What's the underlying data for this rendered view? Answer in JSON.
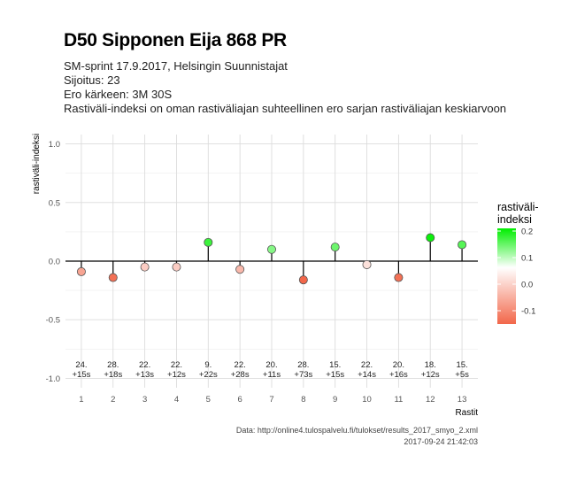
{
  "header": {
    "title": "D50 Sipponen Eija 868 PR",
    "subtitle_lines": [
      "SM-sprint 17.9.2017, Helsingin Suunnistajat",
      "Sijoitus: 23",
      "Ero kärkeen: 3M 30S",
      "Rastiväli-indeksi on oman rastiväliajan suhteellinen ero sarjan rastiväliajan keskiarvoon"
    ]
  },
  "chart_data": {
    "type": "scatter",
    "style": "lollipop",
    "xlabel": "Rastit",
    "ylabel": "rastiväli-indeksi",
    "ylim": [
      -1.0,
      1.0
    ],
    "yticks": [
      -1.0,
      -0.5,
      0.0,
      0.5,
      1.0
    ],
    "ytick_labels": [
      "-1.0",
      "-0.5",
      "0.0",
      "0.5",
      "1.0"
    ],
    "categories": [
      "1",
      "2",
      "3",
      "4",
      "5",
      "6",
      "7",
      "8",
      "9",
      "10",
      "11",
      "12",
      "13"
    ],
    "values": [
      -0.09,
      -0.14,
      -0.05,
      -0.05,
      0.16,
      -0.07,
      0.1,
      -0.16,
      0.12,
      -0.03,
      -0.14,
      0.2,
      0.14
    ],
    "annotations": [
      {
        "rank": "24.",
        "diff": "+15s"
      },
      {
        "rank": "28.",
        "diff": "+18s"
      },
      {
        "rank": "22.",
        "diff": "+13s"
      },
      {
        "rank": "22.",
        "diff": "+12s"
      },
      {
        "rank": "9.",
        "diff": "+22s"
      },
      {
        "rank": "22.",
        "diff": "+28s"
      },
      {
        "rank": "20.",
        "diff": "+11s"
      },
      {
        "rank": "28.",
        "diff": "+73s"
      },
      {
        "rank": "15.",
        "diff": "+15s"
      },
      {
        "rank": "22.",
        "diff": "+14s"
      },
      {
        "rank": "20.",
        "diff": "+16s"
      },
      {
        "rank": "18.",
        "diff": "+12s"
      },
      {
        "rank": "15.",
        "diff": "+5s"
      }
    ],
    "grid": true,
    "legend": {
      "title_lines": [
        "rastiväli-",
        "indeksi"
      ],
      "placement": "right",
      "ticks": [
        0.2,
        0.1,
        0.0,
        -0.1
      ],
      "tick_labels": [
        "0.2",
        "0.1",
        "0.0",
        "-0.1"
      ],
      "range": [
        -0.15,
        0.21
      ],
      "colors": {
        "low": "#f2674a",
        "mid": "#ffffff",
        "high": "#00ee00"
      }
    }
  },
  "caption": {
    "source": "Data: http://online4.tulospalvelu.fi/tulokset/results_2017_smyo_2.xml",
    "timestamp": "2017-09-24 21:42:03"
  }
}
